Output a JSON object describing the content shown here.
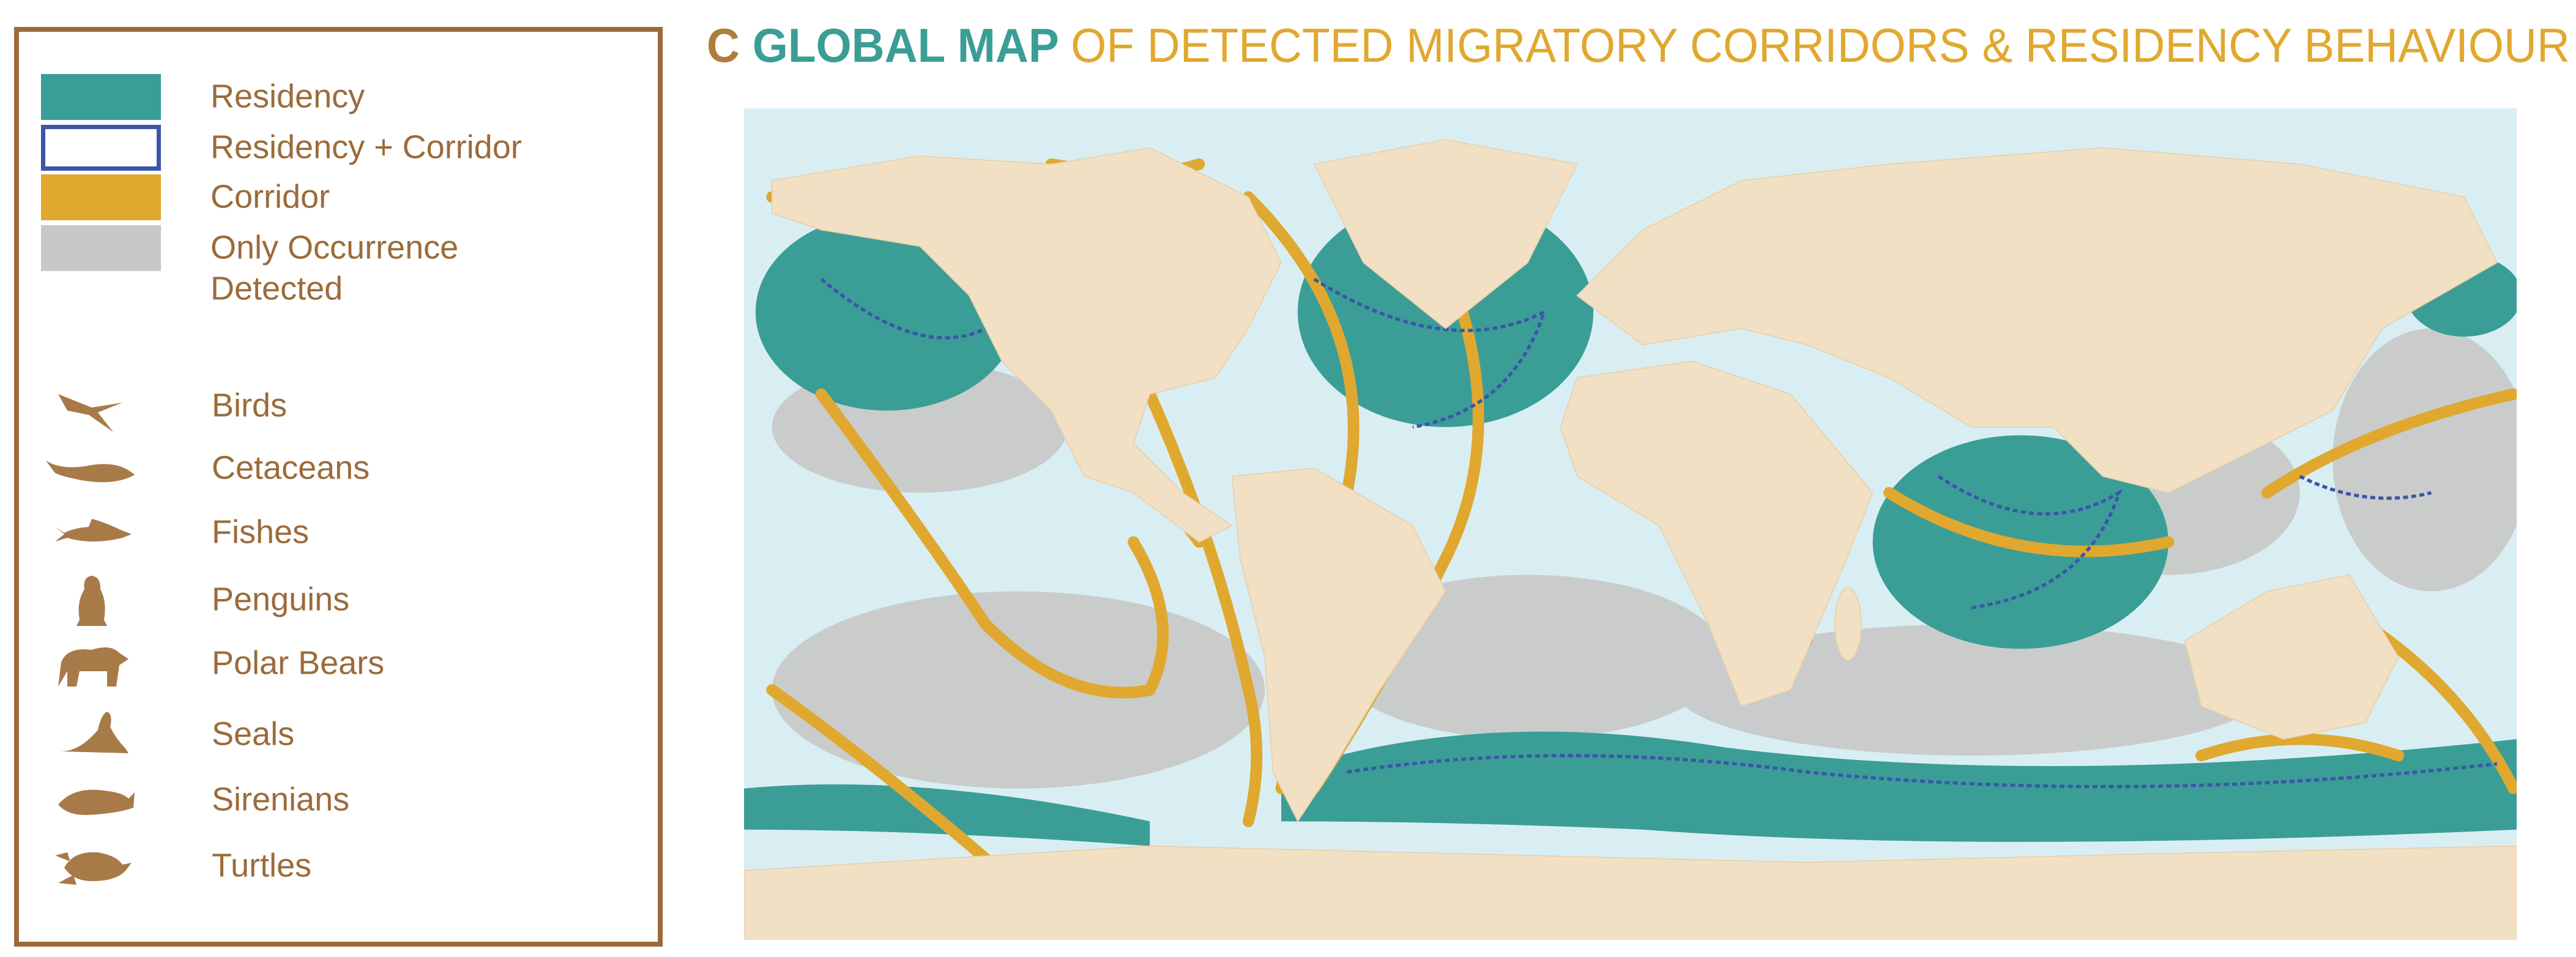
{
  "panel_label": "C",
  "title": {
    "highlight": "GLOBAL MAP",
    "rest": "OF DETECTED MIGRATORY CORRIDORS & RESIDENCY BEHAVIOUR"
  },
  "legend": {
    "categories": [
      {
        "lines": [
          "Residency"
        ],
        "fill": "#3a9e96",
        "border": "#3a9e96"
      },
      {
        "lines": [
          "Residency + Corridor"
        ],
        "fill": "#ffffff",
        "border": "#3b56a8"
      },
      {
        "lines": [
          "Corridor"
        ],
        "fill": "#e0a82e",
        "border": "#e0a82e"
      },
      {
        "lines": [
          "Only Occurrence",
          "Detected"
        ],
        "fill": "#c8c8c8",
        "border": "#c8c8c8"
      }
    ],
    "taxa": [
      "Birds",
      "Cetaceans",
      "Fishes",
      "Penguins",
      "Polar Bears",
      "Seals",
      "Sirenians",
      "Turtles"
    ]
  }
}
